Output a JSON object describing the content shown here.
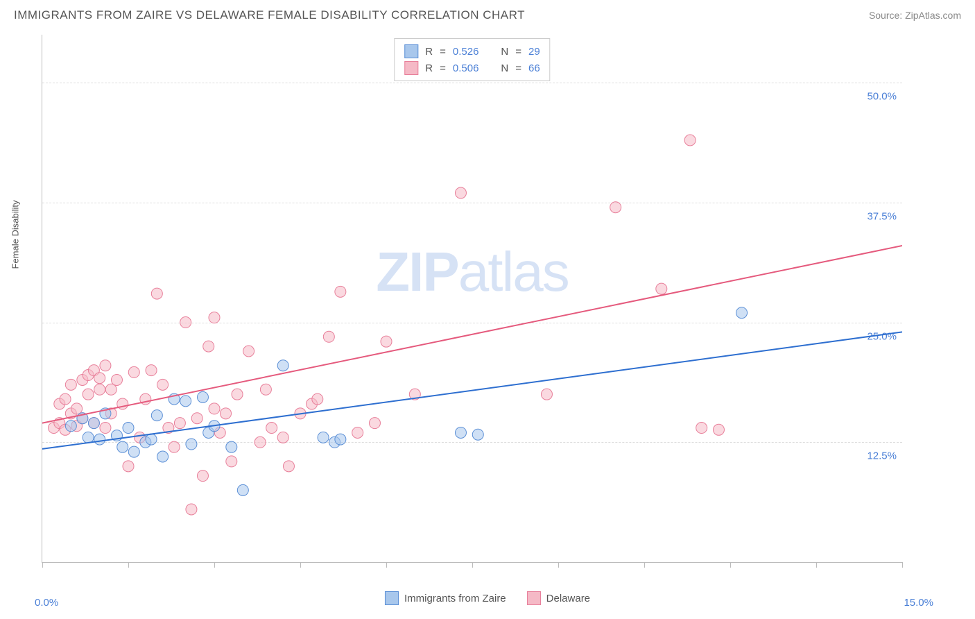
{
  "header": {
    "title": "IMMIGRANTS FROM ZAIRE VS DELAWARE FEMALE DISABILITY CORRELATION CHART",
    "source_prefix": "Source: ",
    "source_name": "ZipAtlas.com"
  },
  "watermark": {
    "part1": "ZIP",
    "part2": "atlas"
  },
  "chart": {
    "type": "scatter",
    "ylabel": "Female Disability",
    "xlim": [
      0,
      15
    ],
    "ylim": [
      0,
      55
    ],
    "xlim_labels": {
      "min": "0.0%",
      "max": "15.0%"
    },
    "ytick_values": [
      12.5,
      25.0,
      37.5,
      50.0
    ],
    "ytick_labels": [
      "12.5%",
      "25.0%",
      "37.5%",
      "50.0%"
    ],
    "xtick_values": [
      0,
      1.5,
      3,
      4.5,
      6,
      7.5,
      9,
      10.5,
      12,
      13.5,
      15
    ],
    "background_color": "#ffffff",
    "grid_color": "#dddddd",
    "axis_color": "#bbbbbb",
    "marker_radius": 8,
    "marker_opacity": 0.55,
    "line_width": 2,
    "series": [
      {
        "name": "Immigrants from Zaire",
        "color_fill": "#a8c7ec",
        "color_stroke": "#5b8fd6",
        "line_color": "#2e6fd0",
        "R": "0.526",
        "N": "29",
        "trend": {
          "x1": 0,
          "y1": 11.8,
          "x2": 15,
          "y2": 24.0
        },
        "points": [
          [
            0.5,
            14.2
          ],
          [
            0.7,
            15.0
          ],
          [
            0.8,
            13.0
          ],
          [
            0.9,
            14.5
          ],
          [
            1.0,
            12.8
          ],
          [
            1.1,
            15.5
          ],
          [
            1.3,
            13.2
          ],
          [
            1.4,
            12.0
          ],
          [
            1.5,
            14.0
          ],
          [
            1.6,
            11.5
          ],
          [
            1.8,
            12.5
          ],
          [
            1.9,
            12.8
          ],
          [
            2.0,
            15.3
          ],
          [
            2.1,
            11.0
          ],
          [
            2.3,
            17.0
          ],
          [
            2.5,
            16.8
          ],
          [
            2.6,
            12.3
          ],
          [
            2.8,
            17.2
          ],
          [
            2.9,
            13.5
          ],
          [
            3.0,
            14.2
          ],
          [
            3.3,
            12.0
          ],
          [
            3.5,
            7.5
          ],
          [
            4.2,
            20.5
          ],
          [
            4.9,
            13.0
          ],
          [
            5.1,
            12.5
          ],
          [
            5.2,
            12.8
          ],
          [
            7.3,
            13.5
          ],
          [
            7.6,
            13.3
          ],
          [
            12.2,
            26.0
          ]
        ]
      },
      {
        "name": "Delaware",
        "color_fill": "#f5b9c6",
        "color_stroke": "#e87f9a",
        "line_color": "#e55a7d",
        "R": "0.506",
        "N": "66",
        "trend": {
          "x1": 0,
          "y1": 14.5,
          "x2": 15,
          "y2": 33.0
        },
        "points": [
          [
            0.2,
            14.0
          ],
          [
            0.3,
            16.5
          ],
          [
            0.3,
            14.5
          ],
          [
            0.4,
            13.8
          ],
          [
            0.4,
            17.0
          ],
          [
            0.5,
            15.5
          ],
          [
            0.5,
            18.5
          ],
          [
            0.6,
            14.2
          ],
          [
            0.6,
            16.0
          ],
          [
            0.7,
            19.0
          ],
          [
            0.7,
            15.0
          ],
          [
            0.8,
            17.5
          ],
          [
            0.8,
            19.5
          ],
          [
            0.9,
            20.0
          ],
          [
            0.9,
            14.5
          ],
          [
            1.0,
            18.0
          ],
          [
            1.0,
            19.2
          ],
          [
            1.1,
            20.5
          ],
          [
            1.2,
            18.0
          ],
          [
            1.2,
            15.5
          ],
          [
            1.3,
            19.0
          ],
          [
            1.4,
            16.5
          ],
          [
            1.5,
            10.0
          ],
          [
            1.6,
            19.8
          ],
          [
            1.7,
            13.0
          ],
          [
            1.8,
            17.0
          ],
          [
            1.9,
            20.0
          ],
          [
            2.0,
            28.0
          ],
          [
            2.1,
            18.5
          ],
          [
            2.2,
            14.0
          ],
          [
            2.3,
            12.0
          ],
          [
            2.4,
            14.5
          ],
          [
            2.5,
            25.0
          ],
          [
            2.6,
            5.5
          ],
          [
            2.7,
            15.0
          ],
          [
            2.8,
            9.0
          ],
          [
            2.9,
            22.5
          ],
          [
            3.0,
            16.0
          ],
          [
            3.0,
            25.5
          ],
          [
            3.1,
            13.5
          ],
          [
            3.2,
            15.5
          ],
          [
            3.3,
            10.5
          ],
          [
            3.4,
            17.5
          ],
          [
            3.6,
            22.0
          ],
          [
            3.8,
            12.5
          ],
          [
            4.0,
            14.0
          ],
          [
            4.2,
            13.0
          ],
          [
            4.3,
            10.0
          ],
          [
            4.5,
            15.5
          ],
          [
            4.7,
            16.5
          ],
          [
            5.0,
            23.5
          ],
          [
            5.2,
            28.2
          ],
          [
            5.5,
            13.5
          ],
          [
            5.8,
            14.5
          ],
          [
            6.0,
            23.0
          ],
          [
            6.5,
            17.5
          ],
          [
            7.3,
            38.5
          ],
          [
            8.8,
            17.5
          ],
          [
            10.0,
            37.0
          ],
          [
            10.8,
            28.5
          ],
          [
            11.3,
            44.0
          ],
          [
            11.5,
            14.0
          ],
          [
            11.8,
            13.8
          ],
          [
            4.8,
            17.0
          ],
          [
            3.9,
            18.0
          ],
          [
            1.1,
            14.0
          ]
        ]
      }
    ]
  },
  "legend_top_labels": {
    "R": "R",
    "eq": "=",
    "N": "N"
  },
  "legend_bottom": {
    "items": [
      "Immigrants from Zaire",
      "Delaware"
    ]
  }
}
